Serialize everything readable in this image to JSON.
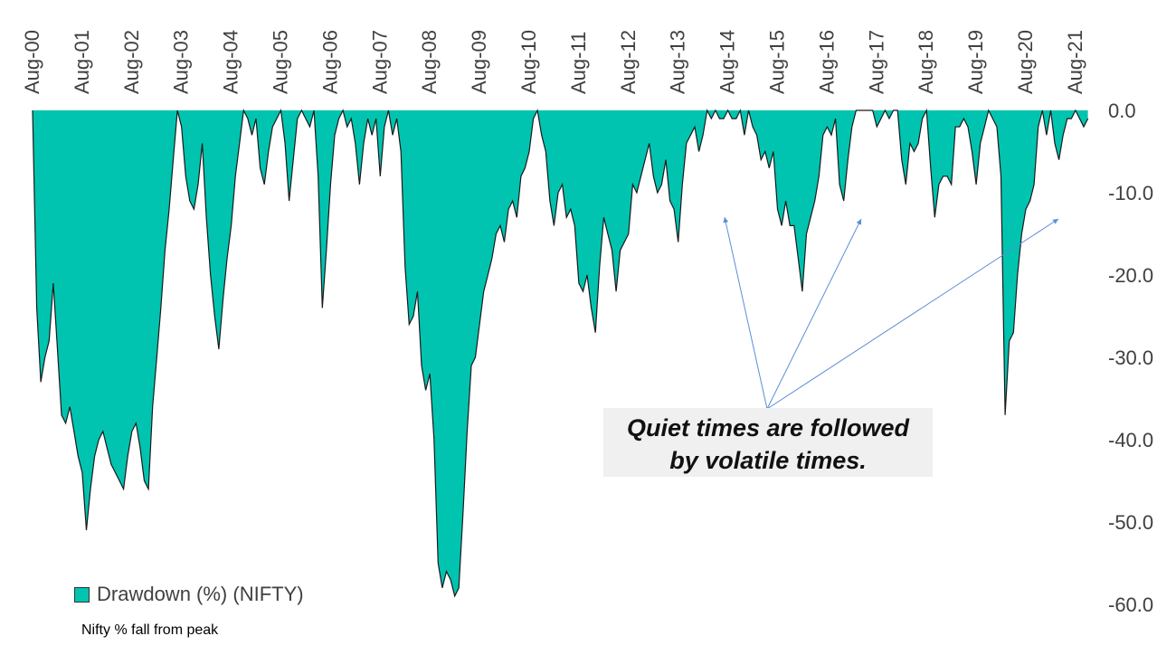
{
  "chart_data": {
    "type": "area",
    "title": "",
    "xlabel": "",
    "ylabel": "",
    "x_tick_labels": [
      "Aug-00",
      "Aug-01",
      "Aug-02",
      "Aug-03",
      "Aug-04",
      "Aug-05",
      "Aug-06",
      "Aug-07",
      "Aug-08",
      "Aug-09",
      "Aug-10",
      "Aug-11",
      "Aug-12",
      "Aug-13",
      "Aug-14",
      "Aug-15",
      "Aug-16",
      "Aug-17",
      "Aug-18",
      "Aug-19",
      "Aug-20",
      "Aug-21"
    ],
    "y_tick_labels": [
      "0.0",
      "-10.0",
      "-20.0",
      "-30.0",
      "-40.0",
      "-50.0",
      "-60.0"
    ],
    "ylim": [
      -60,
      0
    ],
    "x_axis_position": "top",
    "y_axis_position": "right",
    "legend_position": "bottom-left",
    "grid": false,
    "series": [
      {
        "name": "Drawdown (%) (NIFTY)",
        "color": "#00c4b0",
        "edge_color": "#1a1a1a",
        "points": [
          [
            "2000-08",
            0
          ],
          [
            "2000-09",
            -24
          ],
          [
            "2000-10",
            -33
          ],
          [
            "2000-11",
            -30
          ],
          [
            "2000-12",
            -28
          ],
          [
            "2001-01",
            -21
          ],
          [
            "2001-02",
            -29
          ],
          [
            "2001-03",
            -37
          ],
          [
            "2001-04",
            -38
          ],
          [
            "2001-05",
            -36
          ],
          [
            "2001-06",
            -39
          ],
          [
            "2001-07",
            -42
          ],
          [
            "2001-08",
            -44
          ],
          [
            "2001-09",
            -51
          ],
          [
            "2001-10",
            -46
          ],
          [
            "2001-11",
            -42
          ],
          [
            "2001-12",
            -40
          ],
          [
            "2002-01",
            -39
          ],
          [
            "2002-02",
            -41
          ],
          [
            "2002-03",
            -43
          ],
          [
            "2002-04",
            -44
          ],
          [
            "2002-05",
            -45
          ],
          [
            "2002-06",
            -46
          ],
          [
            "2002-07",
            -42
          ],
          [
            "2002-08",
            -39
          ],
          [
            "2002-09",
            -38
          ],
          [
            "2002-10",
            -41
          ],
          [
            "2002-11",
            -45
          ],
          [
            "2002-12",
            -46
          ],
          [
            "2003-01",
            -36
          ],
          [
            "2003-02",
            -30
          ],
          [
            "2003-03",
            -24
          ],
          [
            "2003-04",
            -17
          ],
          [
            "2003-05",
            -12
          ],
          [
            "2003-06",
            -6
          ],
          [
            "2003-07",
            0
          ],
          [
            "2003-08",
            -2
          ],
          [
            "2003-09",
            -8
          ],
          [
            "2003-10",
            -11
          ],
          [
            "2003-11",
            -12
          ],
          [
            "2003-12",
            -9
          ],
          [
            "2004-01",
            -4
          ],
          [
            "2004-02",
            -13
          ],
          [
            "2004-03",
            -20
          ],
          [
            "2004-04",
            -25
          ],
          [
            "2004-05",
            -29
          ],
          [
            "2004-06",
            -23
          ],
          [
            "2004-07",
            -18
          ],
          [
            "2004-08",
            -14
          ],
          [
            "2004-09",
            -8
          ],
          [
            "2004-10",
            -4
          ],
          [
            "2004-11",
            0
          ],
          [
            "2004-12",
            -1
          ],
          [
            "2005-01",
            -3
          ],
          [
            "2005-02",
            -1
          ],
          [
            "2005-03",
            -7
          ],
          [
            "2005-04",
            -9
          ],
          [
            "2005-05",
            -5
          ],
          [
            "2005-06",
            -2
          ],
          [
            "2005-07",
            -1
          ],
          [
            "2005-08",
            0
          ],
          [
            "2005-09",
            -4
          ],
          [
            "2005-10",
            -11
          ],
          [
            "2005-11",
            -6
          ],
          [
            "2005-12",
            -1
          ],
          [
            "2006-01",
            0
          ],
          [
            "2006-02",
            -1
          ],
          [
            "2006-03",
            -2
          ],
          [
            "2006-04",
            0
          ],
          [
            "2006-05",
            -8
          ],
          [
            "2006-06",
            -24
          ],
          [
            "2006-07",
            -17
          ],
          [
            "2006-08",
            -9
          ],
          [
            "2006-09",
            -3
          ],
          [
            "2006-10",
            -1
          ],
          [
            "2006-11",
            0
          ],
          [
            "2006-12",
            -2
          ],
          [
            "2007-01",
            -1
          ],
          [
            "2007-02",
            -4
          ],
          [
            "2007-03",
            -9
          ],
          [
            "2007-04",
            -4
          ],
          [
            "2007-05",
            -1
          ],
          [
            "2007-06",
            -3
          ],
          [
            "2007-07",
            -1
          ],
          [
            "2007-08",
            -8
          ],
          [
            "2007-09",
            -2
          ],
          [
            "2007-10",
            0
          ],
          [
            "2007-11",
            -3
          ],
          [
            "2007-12",
            -1
          ],
          [
            "2008-01",
            -5
          ],
          [
            "2008-02",
            -19
          ],
          [
            "2008-03",
            -26
          ],
          [
            "2008-04",
            -25
          ],
          [
            "2008-05",
            -22
          ],
          [
            "2008-06",
            -31
          ],
          [
            "2008-07",
            -34
          ],
          [
            "2008-08",
            -32
          ],
          [
            "2008-09",
            -40
          ],
          [
            "2008-10",
            -55
          ],
          [
            "2008-11",
            -58
          ],
          [
            "2008-12",
            -56
          ],
          [
            "2009-01",
            -57
          ],
          [
            "2009-02",
            -59
          ],
          [
            "2009-03",
            -58
          ],
          [
            "2009-04",
            -49
          ],
          [
            "2009-05",
            -39
          ],
          [
            "2009-06",
            -31
          ],
          [
            "2009-07",
            -30
          ],
          [
            "2009-08",
            -26
          ],
          [
            "2009-09",
            -22
          ],
          [
            "2009-10",
            -20
          ],
          [
            "2009-11",
            -18
          ],
          [
            "2009-12",
            -15
          ],
          [
            "2010-01",
            -14
          ],
          [
            "2010-02",
            -16
          ],
          [
            "2010-03",
            -12
          ],
          [
            "2010-04",
            -11
          ],
          [
            "2010-05",
            -13
          ],
          [
            "2010-06",
            -8
          ],
          [
            "2010-07",
            -7
          ],
          [
            "2010-08",
            -5
          ],
          [
            "2010-09",
            -1
          ],
          [
            "2010-10",
            0
          ],
          [
            "2010-11",
            -3
          ],
          [
            "2010-12",
            -5
          ],
          [
            "2011-01",
            -11
          ],
          [
            "2011-02",
            -14
          ],
          [
            "2011-03",
            -10
          ],
          [
            "2011-04",
            -9
          ],
          [
            "2011-05",
            -13
          ],
          [
            "2011-06",
            -12
          ],
          [
            "2011-07",
            -14
          ],
          [
            "2011-08",
            -21
          ],
          [
            "2011-09",
            -22
          ],
          [
            "2011-10",
            -20
          ],
          [
            "2011-11",
            -24
          ],
          [
            "2011-12",
            -27
          ],
          [
            "2012-01",
            -19
          ],
          [
            "2012-02",
            -13
          ],
          [
            "2012-03",
            -15
          ],
          [
            "2012-04",
            -17
          ],
          [
            "2012-05",
            -22
          ],
          [
            "2012-06",
            -17
          ],
          [
            "2012-07",
            -16
          ],
          [
            "2012-08",
            -15
          ],
          [
            "2012-09",
            -9
          ],
          [
            "2012-10",
            -10
          ],
          [
            "2012-11",
            -8
          ],
          [
            "2012-12",
            -6
          ],
          [
            "2013-01",
            -4
          ],
          [
            "2013-02",
            -8
          ],
          [
            "2013-03",
            -10
          ],
          [
            "2013-04",
            -9
          ],
          [
            "2013-05",
            -6
          ],
          [
            "2013-06",
            -11
          ],
          [
            "2013-07",
            -12
          ],
          [
            "2013-08",
            -16
          ],
          [
            "2013-09",
            -9
          ],
          [
            "2013-10",
            -4
          ],
          [
            "2013-11",
            -3
          ],
          [
            "2013-12",
            -2
          ],
          [
            "2014-01",
            -5
          ],
          [
            "2014-02",
            -3
          ],
          [
            "2014-03",
            0
          ],
          [
            "2014-04",
            -1
          ],
          [
            "2014-05",
            0
          ],
          [
            "2014-06",
            -1
          ],
          [
            "2014-07",
            -1
          ],
          [
            "2014-08",
            0
          ],
          [
            "2014-09",
            -1
          ],
          [
            "2014-10",
            -1
          ],
          [
            "2014-11",
            0
          ],
          [
            "2014-12",
            -3
          ],
          [
            "2015-01",
            0
          ],
          [
            "2015-02",
            -2
          ],
          [
            "2015-03",
            -3
          ],
          [
            "2015-04",
            -6
          ],
          [
            "2015-05",
            -5
          ],
          [
            "2015-06",
            -7
          ],
          [
            "2015-07",
            -5
          ],
          [
            "2015-08",
            -12
          ],
          [
            "2015-09",
            -14
          ],
          [
            "2015-10",
            -11
          ],
          [
            "2015-11",
            -14
          ],
          [
            "2015-12",
            -14
          ],
          [
            "2016-01",
            -18
          ],
          [
            "2016-02",
            -22
          ],
          [
            "2016-03",
            -15
          ],
          [
            "2016-04",
            -13
          ],
          [
            "2016-05",
            -11
          ],
          [
            "2016-06",
            -8
          ],
          [
            "2016-07",
            -3
          ],
          [
            "2016-08",
            -2
          ],
          [
            "2016-09",
            -3
          ],
          [
            "2016-10",
            -1
          ],
          [
            "2016-11",
            -9
          ],
          [
            "2016-12",
            -11
          ],
          [
            "2017-01",
            -6
          ],
          [
            "2017-02",
            -2
          ],
          [
            "2017-03",
            0
          ],
          [
            "2017-04",
            0
          ],
          [
            "2017-05",
            0
          ],
          [
            "2017-06",
            0
          ],
          [
            "2017-07",
            0
          ],
          [
            "2017-08",
            -2
          ],
          [
            "2017-09",
            -1
          ],
          [
            "2017-10",
            0
          ],
          [
            "2017-11",
            -1
          ],
          [
            "2017-12",
            0
          ],
          [
            "2018-01",
            0
          ],
          [
            "2018-02",
            -6
          ],
          [
            "2018-03",
            -9
          ],
          [
            "2018-04",
            -4
          ],
          [
            "2018-05",
            -5
          ],
          [
            "2018-06",
            -4
          ],
          [
            "2018-07",
            -1
          ],
          [
            "2018-08",
            0
          ],
          [
            "2018-09",
            -7
          ],
          [
            "2018-10",
            -13
          ],
          [
            "2018-11",
            -9
          ],
          [
            "2018-12",
            -8
          ],
          [
            "2019-01",
            -8
          ],
          [
            "2019-02",
            -9
          ],
          [
            "2019-03",
            -2
          ],
          [
            "2019-04",
            -2
          ],
          [
            "2019-05",
            -1
          ],
          [
            "2019-06",
            -2
          ],
          [
            "2019-07",
            -5
          ],
          [
            "2019-08",
            -9
          ],
          [
            "2019-09",
            -4
          ],
          [
            "2019-10",
            -2
          ],
          [
            "2019-11",
            0
          ],
          [
            "2019-12",
            -1
          ],
          [
            "2020-01",
            -2
          ],
          [
            "2020-02",
            -8
          ],
          [
            "2020-03",
            -37
          ],
          [
            "2020-04",
            -28
          ],
          [
            "2020-05",
            -27
          ],
          [
            "2020-06",
            -20
          ],
          [
            "2020-07",
            -15
          ],
          [
            "2020-08",
            -12
          ],
          [
            "2020-09",
            -11
          ],
          [
            "2020-10",
            -9
          ],
          [
            "2020-11",
            -2
          ],
          [
            "2020-12",
            0
          ],
          [
            "2021-01",
            -3
          ],
          [
            "2021-02",
            0
          ],
          [
            "2021-03",
            -4
          ],
          [
            "2021-04",
            -6
          ],
          [
            "2021-05",
            -3
          ],
          [
            "2021-06",
            -1
          ],
          [
            "2021-07",
            -1
          ],
          [
            "2021-08",
            0
          ],
          [
            "2021-09",
            -1
          ],
          [
            "2021-10",
            -2
          ],
          [
            "2021-11",
            -1
          ]
        ]
      }
    ],
    "annotations": [
      {
        "text_lines": [
          "Quiet times are followed",
          "by volatile times."
        ],
        "arrows_point_to": [
          "2014-08",
          "2016-10",
          "2021-07"
        ]
      }
    ]
  },
  "legend": {
    "label": "Drawdown (%) (NIFTY)",
    "swatch_color": "#00c4b0"
  },
  "subnote": "Nifty % fall from peak",
  "callout": {
    "line1": "Quiet times are followed",
    "line2": "by volatile times."
  }
}
